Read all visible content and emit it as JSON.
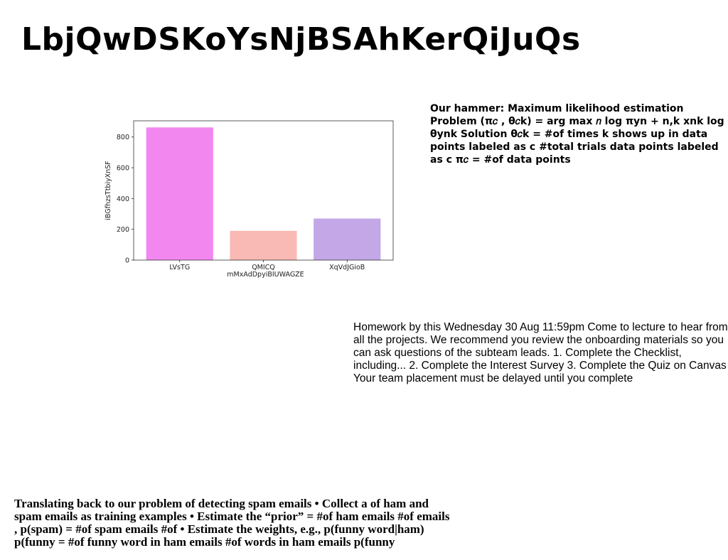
{
  "page": {
    "title": "LbjQwDSKoYsNjBSAhKerQiJuQs"
  },
  "text_blocks": {
    "mle": "Our hammer: Maximum likelihood estimation Problem (π𝑐 , θ𝑐k) = arg max 𝑛 log πyn + n,k xnk log θynk Solution θ𝑐k = #of times k shows up in data points labeled as c #total trials data points labeled as c π𝑐 = #of data points",
    "homework": "Homework by this Wednesday 30 Aug 11:59pm Come to lecture to hear from all the projects. We recommend you review the onboarding materials so you can ask questions of the subteam leads. 1. Complete the Checklist, including... 2. Complete the Interest Survey 3. Complete the Quiz on Canvas Your team placement must be delayed until you complete",
    "spam": "Translating back to our problem of detecting spam emails • Collect a of ham and spam emails as training examples • Estimate the “prior” = #of ham emails #of emails , p(spam) = #of spam emails #of • Estimate the weights, e.g., p(funny word|ham) p(funny = #of funny word in ham emails #of words in ham emails p(funny"
  },
  "chart_data": {
    "type": "bar",
    "categories": [
      "LVsTG",
      "QMICQ",
      "XqVdJGioB"
    ],
    "values": [
      862,
      190,
      270
    ],
    "colors": [
      "#f287ef",
      "#f9b9b5",
      "#c3a7e6"
    ],
    "xlabel": "mMxAdDpyiBIUWAGZE",
    "ylabel": "iBGfhzsTtbiyXnSF",
    "ylim": [
      0,
      905
    ],
    "yticks": [
      0,
      200,
      400,
      600,
      800
    ],
    "grid": false
  }
}
